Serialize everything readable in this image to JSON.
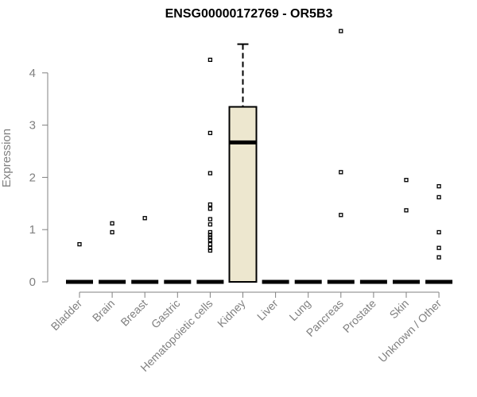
{
  "chart_data": {
    "type": "box",
    "title": "ENSG00000172769 - OR5B3",
    "xlabel": "",
    "ylabel": "Expression",
    "ylim": [
      0,
      4.85
    ],
    "yticks": [
      0,
      1,
      2,
      3,
      4
    ],
    "ytick_labels": [
      "0",
      "1",
      "2",
      "3",
      "4"
    ],
    "categories": [
      "Bladder",
      "Brain",
      "Breast",
      "Gastric",
      "Hematopoietic cells",
      "Kidney",
      "Liver",
      "Lung",
      "Pancreas",
      "Prostate",
      "Skin",
      "Unknown / Other"
    ],
    "boxes": [
      {
        "category": "Bladder",
        "q1": 0,
        "median": 0,
        "q3": 0,
        "whisker_low": 0,
        "whisker_high": 0,
        "outliers": [
          0.72
        ]
      },
      {
        "category": "Brain",
        "q1": 0,
        "median": 0,
        "q3": 0,
        "whisker_low": 0,
        "whisker_high": 0,
        "outliers": [
          0.95,
          1.12
        ]
      },
      {
        "category": "Breast",
        "q1": 0,
        "median": 0,
        "q3": 0,
        "whisker_low": 0,
        "whisker_high": 0,
        "outliers": [
          1.22
        ]
      },
      {
        "category": "Gastric",
        "q1": 0,
        "median": 0,
        "q3": 0,
        "whisker_low": 0,
        "whisker_high": 0,
        "outliers": []
      },
      {
        "category": "Hematopoietic cells",
        "q1": 0,
        "median": 0,
        "q3": 0,
        "whisker_low": 0,
        "whisker_high": 0,
        "outliers": [
          0.6,
          0.65,
          0.72,
          0.8,
          0.85,
          0.9,
          0.95,
          1.1,
          1.2,
          1.4,
          1.48,
          2.08,
          2.85,
          4.25
        ]
      },
      {
        "category": "Kidney",
        "q1": 0,
        "median": 2.67,
        "q3": 3.35,
        "whisker_low": 0,
        "whisker_high": 4.55,
        "outliers": []
      },
      {
        "category": "Liver",
        "q1": 0,
        "median": 0,
        "q3": 0,
        "whisker_low": 0,
        "whisker_high": 0,
        "outliers": []
      },
      {
        "category": "Lung",
        "q1": 0,
        "median": 0,
        "q3": 0,
        "whisker_low": 0,
        "whisker_high": 0,
        "outliers": []
      },
      {
        "category": "Pancreas",
        "q1": 0,
        "median": 0,
        "q3": 0,
        "whisker_low": 0,
        "whisker_high": 0,
        "outliers": [
          1.28,
          2.1,
          4.8
        ]
      },
      {
        "category": "Prostate",
        "q1": 0,
        "median": 0,
        "q3": 0,
        "whisker_low": 0,
        "whisker_high": 0,
        "outliers": []
      },
      {
        "category": "Skin",
        "q1": 0,
        "median": 0,
        "q3": 0,
        "whisker_low": 0,
        "whisker_high": 0,
        "outliers": [
          1.37,
          1.95
        ]
      },
      {
        "category": "Unknown / Other",
        "q1": 0,
        "median": 0,
        "q3": 0,
        "whisker_low": 0,
        "whisker_high": 0,
        "outliers": [
          0.47,
          0.65,
          0.95,
          1.62,
          1.83
        ]
      }
    ],
    "grid": false,
    "legend": "none",
    "colors": {
      "box_fill": "#ede7cf",
      "box_stroke": "#000000",
      "axis": "#808080",
      "title": "#000000"
    }
  }
}
